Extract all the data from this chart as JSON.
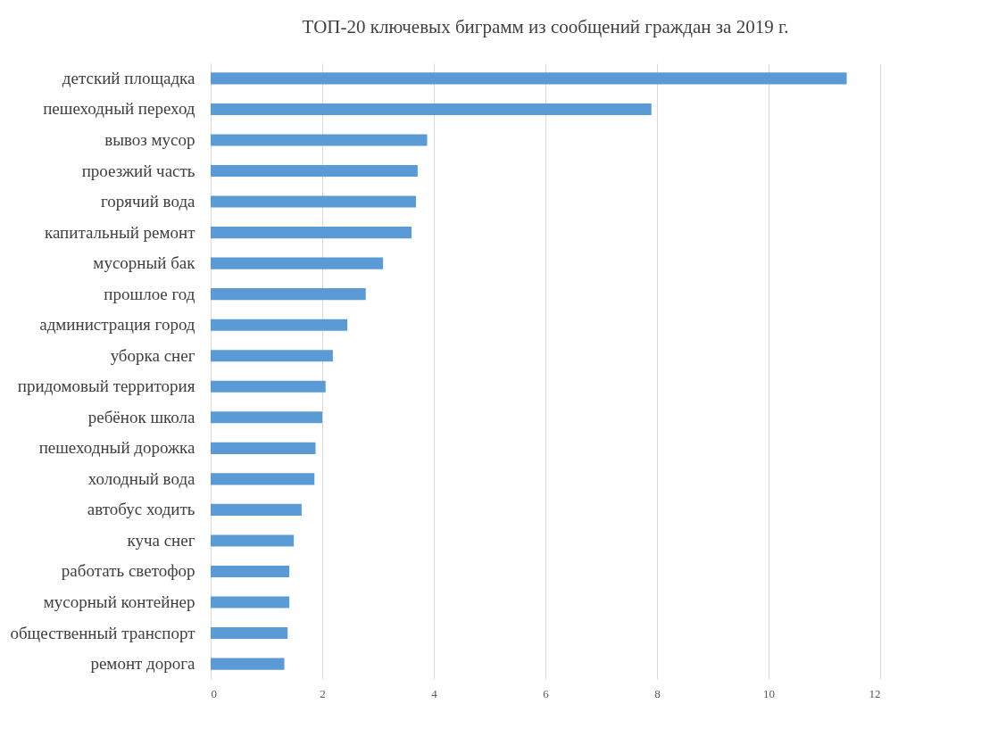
{
  "chart_data": {
    "type": "bar",
    "orientation": "horizontal",
    "title": "ТОП-20 ключевых биграмм из сообщений граждан за 2019 г.",
    "categories": [
      "детский площадка",
      "пешеходный переход",
      "вывоз мусор",
      "проезжий часть",
      "горячий вода",
      "капитальный ремонт",
      "мусорный бак",
      "прошлое год",
      "администрация город",
      "уборка снег",
      "придомовый территория",
      "ребёнок школа",
      "пешеходный дорожка",
      "холодный вода",
      "автобус ходить",
      "куча снег",
      "работать светофор",
      "мусорный контейнер",
      "общественный транспорт",
      "ремонт дорога"
    ],
    "values": [
      11.4,
      7.9,
      3.88,
      3.71,
      3.68,
      3.6,
      3.09,
      2.78,
      2.45,
      2.19,
      2.06,
      2.0,
      1.88,
      1.86,
      1.63,
      1.49,
      1.41,
      1.41,
      1.38,
      1.32
    ],
    "color": "#5b9bd5",
    "xlim": [
      0,
      12
    ],
    "xticks": [
      0,
      2,
      4,
      6,
      8,
      10,
      12
    ],
    "grid": "x"
  }
}
